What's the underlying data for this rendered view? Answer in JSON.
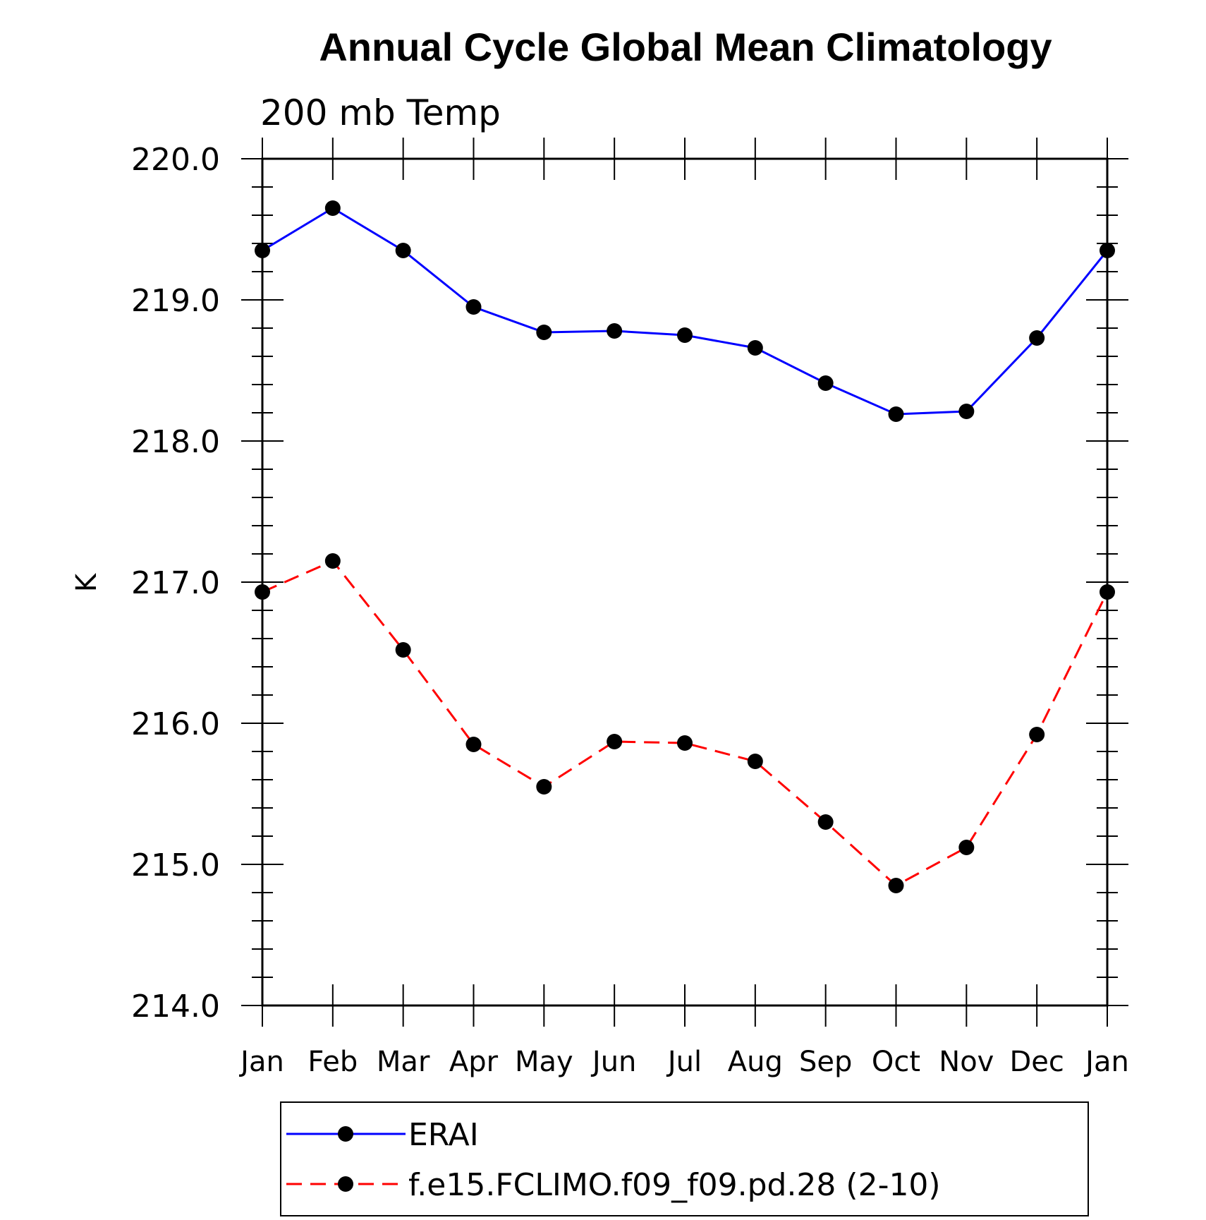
{
  "chart_data": {
    "type": "line",
    "title": "Annual Cycle Global Mean Climatology",
    "subtitle": "200 mb Temp",
    "xlabel": "",
    "ylabel": "K",
    "categories": [
      "Jan",
      "Feb",
      "Mar",
      "Apr",
      "May",
      "Jun",
      "Jul",
      "Aug",
      "Sep",
      "Oct",
      "Nov",
      "Dec",
      "Jan"
    ],
    "ylim": [
      214.0,
      220.0
    ],
    "yticks": [
      "214.0",
      "215.0",
      "216.0",
      "217.0",
      "218.0",
      "219.0",
      "220.0"
    ],
    "grid": false,
    "legend_position": "bottom",
    "series": [
      {
        "name": "ERAI",
        "color": "#0000ff",
        "dash": "solid",
        "marker": "filled-circle",
        "values": [
          219.35,
          219.65,
          219.35,
          218.95,
          218.77,
          218.78,
          218.75,
          218.66,
          218.41,
          218.19,
          218.21,
          218.73,
          219.35
        ]
      },
      {
        "name": "f.e15.FCLIMO.f09_f09.pd.28 (2-10)",
        "color": "#ff0000",
        "dash": "dashed",
        "marker": "filled-circle",
        "values": [
          216.93,
          217.15,
          216.52,
          215.85,
          215.55,
          215.87,
          215.86,
          215.73,
          215.3,
          214.85,
          215.12,
          215.92,
          216.93
        ]
      }
    ]
  }
}
